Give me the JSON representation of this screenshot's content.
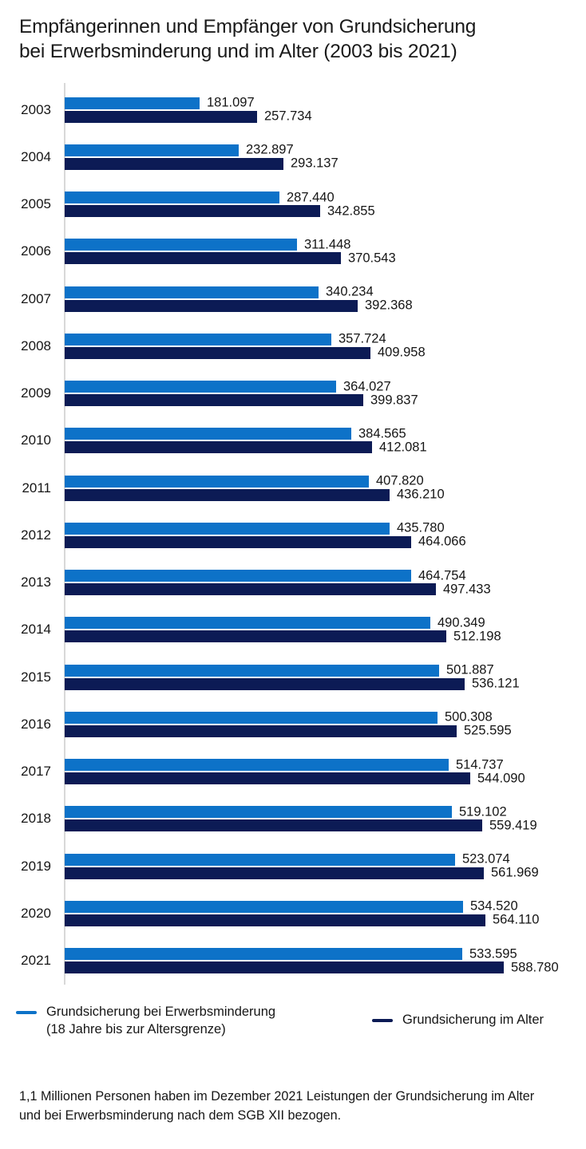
{
  "title": {
    "line1": "Empfängerinnen und Empfänger von Grundsicherung",
    "line2": "bei Erwerbsminderung und im Alter (2003 bis 2021)"
  },
  "chart_data": {
    "type": "bar",
    "orientation": "horizontal",
    "title": "Empfängerinnen und Empfänger von Grundsicherung bei Erwerbsminderung und im Alter (2003 bis 2021)",
    "categories": [
      "2003",
      "2004",
      "2005",
      "2006",
      "2007",
      "2008",
      "2009",
      "2010",
      "2011",
      "2012",
      "2013",
      "2014",
      "2015",
      "2016",
      "2017",
      "2018",
      "2019",
      "2020",
      "2021"
    ],
    "series": [
      {
        "name": "Grundsicherung bei Erwerbsminderung (18 Jahre bis zur Altersgrenze)",
        "color": "#0d72c8",
        "values": [
          181097,
          232897,
          287440,
          311448,
          340234,
          357724,
          364027,
          384565,
          407820,
          435780,
          464754,
          490349,
          501887,
          500308,
          514737,
          519102,
          523074,
          534520,
          533595
        ]
      },
      {
        "name": "Grundsicherung im Alter",
        "color": "#0c1b55",
        "values": [
          257734,
          293137,
          342855,
          370543,
          392368,
          409958,
          399837,
          412081,
          436210,
          464066,
          497433,
          512198,
          536121,
          525595,
          544090,
          559419,
          561969,
          564110,
          588780
        ]
      }
    ],
    "xlim": [
      0,
      635000
    ],
    "value_labels_shown": true,
    "value_label_format": "thousands separated by dot (de-DE)",
    "grid": false,
    "axis_line_color": "#d8d8d8",
    "legend_position": "bottom"
  },
  "legend": {
    "items": [
      {
        "label_line1": "Grundsicherung bei Erwerbsminderung",
        "label_line2": "(18 Jahre bis zur Altersgrenze)",
        "color": "#0d72c8"
      },
      {
        "label_line1": "Grundsicherung im Alter",
        "label_line2": "",
        "color": "#0c1b55"
      }
    ]
  },
  "footnote": {
    "line1": "1,1 Millionen Personen haben im Dezember 2021 Leistungen der Grundsicherung im Alter",
    "line2": "und bei Erwerbsminderung nach dem SGB XII bezogen."
  }
}
